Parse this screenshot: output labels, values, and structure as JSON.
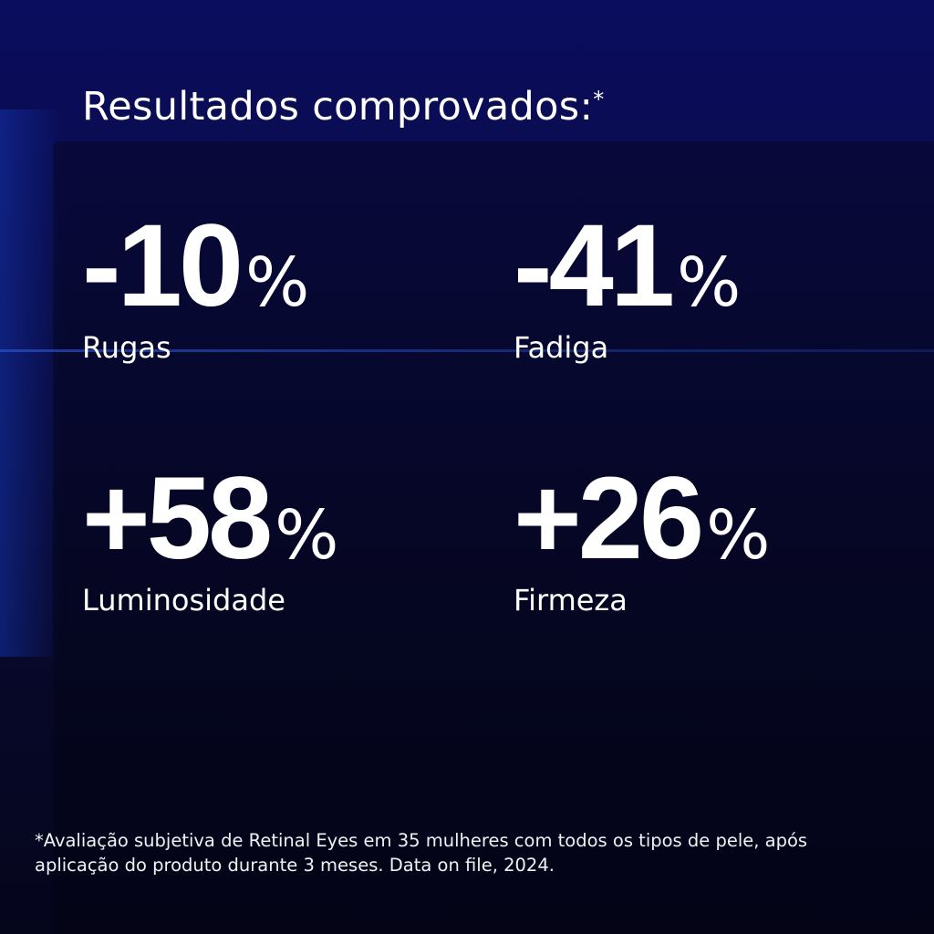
{
  "header": {
    "title": "Resultados comprovados:",
    "title_mark": "*"
  },
  "stats": [
    {
      "figure": "-10",
      "unit": "%",
      "label": "Rugas"
    },
    {
      "figure": "-41",
      "unit": "%",
      "label": "Fadiga"
    },
    {
      "figure": "+58",
      "unit": "%",
      "label": "Luminosidade"
    },
    {
      "figure": "+26",
      "unit": "%",
      "label": "Firmeza"
    }
  ],
  "footnote": {
    "lines": [
      "*Avaliação subjetiva de Retinal Eyes em 35 mulheres com todos os tipos de pele, após",
      "aplicação do produto durante 3 meses. Data on file, 2024."
    ]
  }
}
